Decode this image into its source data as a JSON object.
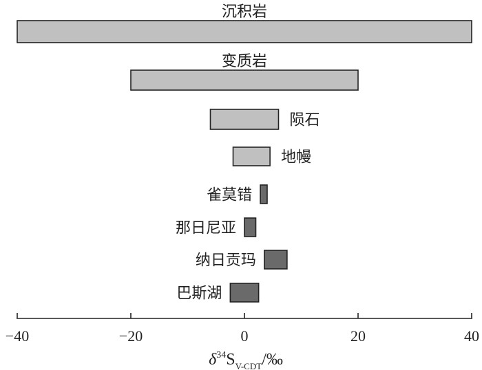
{
  "chart_data": {
    "type": "bar",
    "orientation": "horizontal-range",
    "xlim": [
      -40,
      40
    ],
    "xticks": [
      -40,
      -20,
      0,
      20,
      40
    ],
    "xtick_labels": [
      "−40",
      "−20",
      "0",
      "20",
      "40"
    ],
    "xlabel": {
      "symbol": "δ",
      "superscript": "34",
      "main": "S",
      "subscript": "V-CDT",
      "suffix": "/‰"
    },
    "series": [
      {
        "name": "沉积岩",
        "min": -40,
        "max": 40,
        "color": "#c0c0c0",
        "label_pos": "above"
      },
      {
        "name": "变质岩",
        "min": -20,
        "max": 20,
        "color": "#c0c0c0",
        "label_pos": "above"
      },
      {
        "name": "陨石",
        "min": -6,
        "max": 6,
        "color": "#c0c0c0",
        "label_pos": "right"
      },
      {
        "name": "地幔",
        "min": -2,
        "max": 4.5,
        "color": "#c0c0c0",
        "label_pos": "right"
      },
      {
        "name": "雀莫错",
        "min": 2.8,
        "max": 4,
        "color": "#6a6a6a",
        "label_pos": "left"
      },
      {
        "name": "那日尼亚",
        "min": 0,
        "max": 2,
        "color": "#6a6a6a",
        "label_pos": "left"
      },
      {
        "name": "纳日贡玛",
        "min": 3.5,
        "max": 7.5,
        "color": "#6a6a6a",
        "label_pos": "left"
      },
      {
        "name": "巴斯湖",
        "min": -2.5,
        "max": 2.5,
        "color": "#6a6a6a",
        "label_pos": "left"
      }
    ]
  }
}
